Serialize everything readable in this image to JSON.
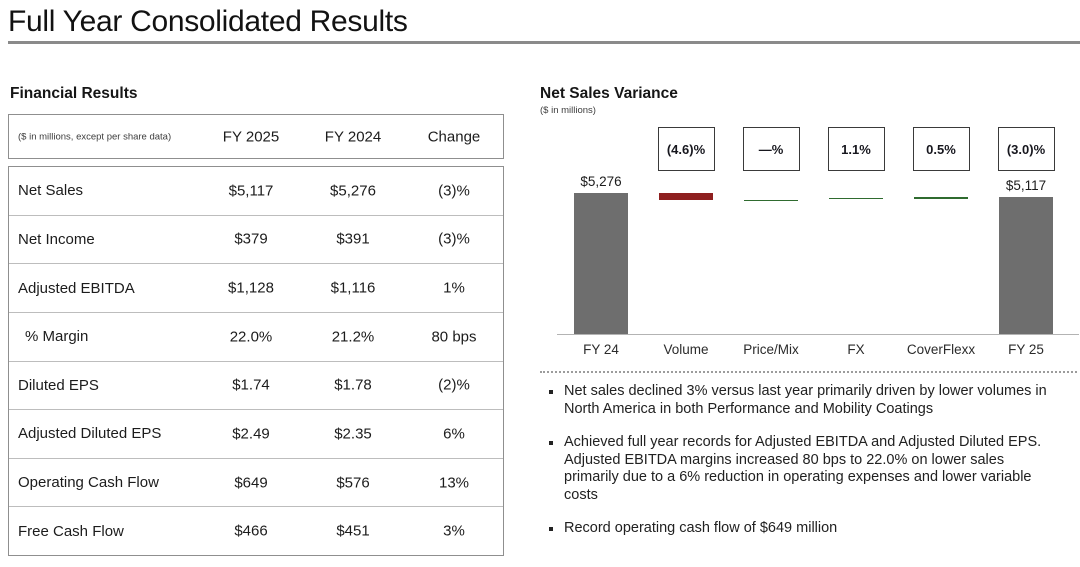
{
  "page": {
    "title": "Full Year Consolidated Results"
  },
  "financial_results": {
    "heading": "Financial Results",
    "table": {
      "unit_note": "($ in millions, except per share data)",
      "columns": [
        "FY 2025",
        "FY 2024",
        "Change"
      ],
      "rows": [
        {
          "label": "Net Sales",
          "fy2025": "$5,117",
          "fy2024": "$5,276",
          "change": "(3)%",
          "indent": false
        },
        {
          "label": "Net Income",
          "fy2025": "$379",
          "fy2024": "$391",
          "change": "(3)%",
          "indent": false
        },
        {
          "label": "Adjusted EBITDA",
          "fy2025": "$1,128",
          "fy2024": "$1,116",
          "change": "1%",
          "indent": false
        },
        {
          "label": "% Margin",
          "fy2025": "22.0%",
          "fy2024": "21.2%",
          "change": "80 bps",
          "indent": true
        },
        {
          "label": "Diluted EPS",
          "fy2025": "$1.74",
          "fy2024": "$1.78",
          "change": "(2)%",
          "indent": false
        },
        {
          "label": "Adjusted Diluted EPS",
          "fy2025": "$2.49",
          "fy2024": "$2.35",
          "change": "6%",
          "indent": false
        },
        {
          "label": "Operating Cash Flow",
          "fy2025": "$649",
          "fy2024": "$576",
          "change": "13%",
          "indent": false
        },
        {
          "label": "Free Cash Flow",
          "fy2025": "$466",
          "fy2024": "$451",
          "change": "3%",
          "indent": false
        }
      ]
    }
  },
  "net_sales_variance": {
    "heading": "Net Sales Variance",
    "unit_note": "($ in millions)",
    "bullets": [
      "Net sales declined 3% versus last year primarily driven by lower volumes in North America in both Performance and Mobility Coatings",
      "Achieved full year records for Adjusted EBITDA and Adjusted Diluted EPS. Adjusted EBITDA margins increased 80 bps to 22.0% on lower sales primarily due to a 6% reduction in operating expenses and lower variable costs",
      "Record operating cash flow of $649 million"
    ]
  },
  "chart_data": {
    "type": "bar",
    "subtype": "waterfall",
    "title": "Net Sales Variance",
    "unit_note": "($ in millions)",
    "ylim": [
      0,
      5276
    ],
    "grid": false,
    "categories": [
      "FY 24",
      "Volume",
      "Price/Mix",
      "FX",
      "CoverFlexx",
      "FY 25"
    ],
    "columns": [
      {
        "category": "FY 24",
        "kind": "total",
        "value": 5276,
        "value_label": "$5,276",
        "pct_label": null,
        "color": "#6e6e6e"
      },
      {
        "category": "Volume",
        "kind": "delta",
        "delta": -243,
        "value_label": null,
        "pct_label": "(4.6)%",
        "color": "#8e1f1f"
      },
      {
        "category": "Price/Mix",
        "kind": "delta",
        "delta": 0,
        "value_label": null,
        "pct_label": "—%",
        "color": "#2f6b2f"
      },
      {
        "category": "FX",
        "kind": "delta",
        "delta": 58,
        "value_label": null,
        "pct_label": "1.1%",
        "color": "#2f6b2f"
      },
      {
        "category": "CoverFlexx",
        "kind": "delta",
        "delta": 26,
        "value_label": null,
        "pct_label": "0.5%",
        "color": "#2f6b2f"
      },
      {
        "category": "FY 25",
        "kind": "total",
        "value": 5117,
        "value_label": "$5,117",
        "pct_label": "(3.0)%",
        "color": "#6e6e6e"
      }
    ]
  },
  "colors": {
    "bar_gray": "#6e6e6e",
    "negative_red": "#8e1f1f",
    "positive_green": "#2f6b2f",
    "rule_gray": "#8a8a8a"
  }
}
